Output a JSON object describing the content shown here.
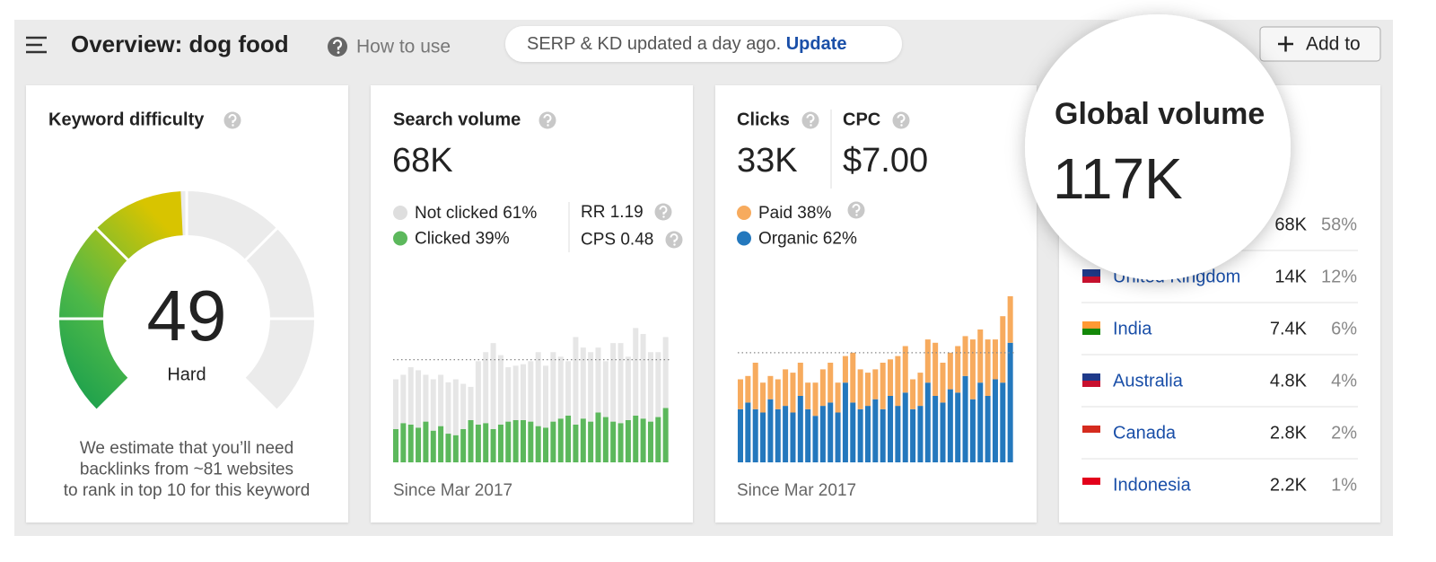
{
  "header": {
    "title": "Overview: dog food",
    "help": "How to use",
    "notice": {
      "text": "SERP & KD updated a day ago.",
      "link": "Update"
    },
    "button": "Add to"
  },
  "keyword_difficulty": {
    "title": "Keyword difficulty",
    "gauge": {
      "value": 49,
      "range": [
        0,
        100
      ]
    },
    "label": "Hard",
    "note": [
      "We estimate that you’ll need",
      "backlinks from ~81 websites",
      "to rank in top 10 for this keyword"
    ]
  },
  "search_volume": {
    "title": "Search volume",
    "value": "68K",
    "legend": [
      {
        "label": "Not clicked 61%",
        "color": "#dedede"
      },
      {
        "label": "Clicked 39%",
        "color": "#5cb85c"
      }
    ],
    "metrics": [
      "RR 1.19",
      "CPS 0.48"
    ],
    "chart": {
      "ylim": [
        0,
        110
      ],
      "average": 68,
      "series": [
        {
          "color": "#5cb85c",
          "values": [
            22,
            26,
            25,
            23,
            27,
            21,
            24,
            19,
            18,
            22,
            28,
            25,
            26,
            22,
            25,
            27,
            28,
            28,
            27,
            24,
            23,
            27,
            29,
            31,
            25,
            29,
            27,
            33,
            30,
            27,
            26,
            28,
            31,
            29,
            27,
            30,
            36
          ]
        },
        {
          "color": "#e6e6e6",
          "values": [
            33,
            32,
            38,
            38,
            31,
            34,
            34,
            34,
            37,
            30,
            22,
            42,
            47,
            57,
            46,
            36,
            36,
            37,
            40,
            49,
            41,
            46,
            41,
            36,
            58,
            47,
            46,
            43,
            37,
            52,
            53,
            42,
            58,
            56,
            46,
            43,
            47
          ]
        }
      ]
    },
    "footer": "Since Mar 2017"
  },
  "clicks": {
    "title": "Clicks",
    "value": "33K",
    "cpc_title": "CPC",
    "cpc_value": "$7.00",
    "legend": [
      {
        "label": "Paid 38%",
        "color": "#f7ab5e"
      },
      {
        "label": "Organic 62%",
        "color": "#2478bd"
      }
    ],
    "chart": {
      "ylim": [
        0,
        50
      ],
      "average": 33,
      "series": [
        {
          "color": "#2478bd",
          "values": [
            16,
            18,
            16,
            15,
            19,
            16,
            17,
            15,
            20,
            16,
            14,
            17,
            18,
            15,
            24,
            18,
            16,
            17,
            19,
            16,
            20,
            17,
            21,
            16,
            17,
            24,
            20,
            18,
            22,
            21,
            26,
            19,
            24,
            20,
            25,
            24,
            36
          ]
        },
        {
          "color": "#f7ab5e",
          "values": [
            9,
            8,
            14,
            9,
            7,
            9,
            11,
            12,
            10,
            8,
            10,
            11,
            12,
            9,
            8,
            15,
            12,
            10,
            9,
            14,
            11,
            15,
            14,
            9,
            10,
            13,
            16,
            12,
            11,
            14,
            12,
            18,
            16,
            17,
            12,
            20,
            14
          ]
        }
      ]
    },
    "footer": "Since Mar 2017"
  },
  "global_volume": {
    "title": "Global volume",
    "value": "117K",
    "countries": [
      {
        "name": null,
        "volume": "68K",
        "share": "58%"
      },
      {
        "name": "United Kingdom",
        "volume": "14K",
        "share": "12%"
      },
      {
        "name": "India",
        "volume": "7.4K",
        "share": "6%"
      },
      {
        "name": "Australia",
        "volume": "4.8K",
        "share": "4%"
      },
      {
        "name": "Canada",
        "volume": "2.8K",
        "share": "2%"
      },
      {
        "name": "Indonesia",
        "volume": "2.2K",
        "share": "1%"
      }
    ]
  }
}
